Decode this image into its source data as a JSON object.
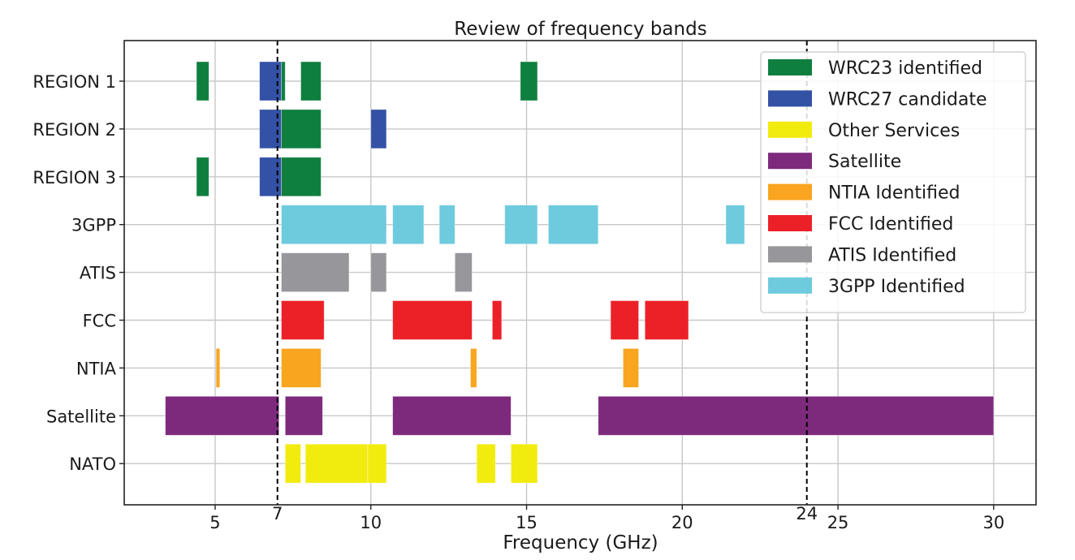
{
  "chart_data": {
    "type": "bar",
    "orientation": "horizontal-range",
    "title": "Review of frequency bands",
    "xlabel": "Frequency (GHz)",
    "ylabel": "",
    "xlim": [
      2.08,
      31.36
    ],
    "xticks": [
      5,
      10,
      15,
      20,
      25,
      30
    ],
    "grid": true,
    "legend_position": "top-right",
    "categories": [
      "REGION 1",
      "REGION 2",
      "REGION 3",
      "3GPP",
      "ATIS",
      "FCC",
      "NTIA",
      "Satellite",
      "NATO"
    ],
    "vlines": [
      {
        "x": 7,
        "label": "7",
        "style": "dashed",
        "color": "#000000"
      },
      {
        "x": 24,
        "label": "24",
        "style": "dashed",
        "color": "#000000"
      }
    ],
    "series": [
      {
        "name": "WRC23 identified",
        "color": "#0f7f3f"
      },
      {
        "name": "WRC27 candidate",
        "color": "#3352a6"
      },
      {
        "name": "Other Services",
        "color": "#f2eb0e"
      },
      {
        "name": "Satellite",
        "color": "#7d2a7d"
      },
      {
        "name": "NTIA Identified",
        "color": "#f9a51f"
      },
      {
        "name": "FCC Identified",
        "color": "#ec2128"
      },
      {
        "name": "ATIS Identified",
        "color": "#97979b"
      },
      {
        "name": "3GPP Identified",
        "color": "#6dcbdd"
      }
    ],
    "bands": [
      {
        "row": "REGION 1",
        "series": "WRC23 identified",
        "start": 4.4,
        "end": 4.8
      },
      {
        "row": "REGION 1",
        "series": "WRC27 candidate",
        "start": 6.425,
        "end": 7.125
      },
      {
        "row": "REGION 1",
        "series": "WRC23 identified",
        "start": 7.125,
        "end": 7.25
      },
      {
        "row": "REGION 1",
        "series": "WRC23 identified",
        "start": 7.75,
        "end": 8.4
      },
      {
        "row": "REGION 1",
        "series": "WRC23 identified",
        "start": 14.8,
        "end": 15.35
      },
      {
        "row": "REGION 2",
        "series": "WRC27 candidate",
        "start": 6.425,
        "end": 7.125
      },
      {
        "row": "REGION 2",
        "series": "WRC23 identified",
        "start": 7.125,
        "end": 8.4
      },
      {
        "row": "REGION 2",
        "series": "WRC27 candidate",
        "start": 10.0,
        "end": 10.5
      },
      {
        "row": "REGION 3",
        "series": "WRC23 identified",
        "start": 4.4,
        "end": 4.8
      },
      {
        "row": "REGION 3",
        "series": "WRC27 candidate",
        "start": 6.425,
        "end": 7.125
      },
      {
        "row": "REGION 3",
        "series": "WRC23 identified",
        "start": 7.125,
        "end": 8.4
      },
      {
        "row": "3GPP",
        "series": "3GPP Identified",
        "start": 7.125,
        "end": 10.5
      },
      {
        "row": "3GPP",
        "series": "3GPP Identified",
        "start": 10.7,
        "end": 11.7
      },
      {
        "row": "3GPP",
        "series": "3GPP Identified",
        "start": 12.2,
        "end": 12.7
      },
      {
        "row": "3GPP",
        "series": "3GPP Identified",
        "start": 14.3,
        "end": 15.35
      },
      {
        "row": "3GPP",
        "series": "3GPP Identified",
        "start": 15.7,
        "end": 17.3
      },
      {
        "row": "3GPP",
        "series": "3GPP Identified",
        "start": 21.4,
        "end": 22.0
      },
      {
        "row": "ATIS",
        "series": "ATIS Identified",
        "start": 7.125,
        "end": 9.3
      },
      {
        "row": "ATIS",
        "series": "ATIS Identified",
        "start": 10.0,
        "end": 10.5
      },
      {
        "row": "ATIS",
        "series": "ATIS Identified",
        "start": 12.7,
        "end": 13.25
      },
      {
        "row": "FCC",
        "series": "FCC Identified",
        "start": 7.125,
        "end": 8.5
      },
      {
        "row": "FCC",
        "series": "FCC Identified",
        "start": 10.7,
        "end": 13.25
      },
      {
        "row": "FCC",
        "series": "FCC Identified",
        "start": 13.9,
        "end": 14.2
      },
      {
        "row": "FCC",
        "series": "FCC Identified",
        "start": 17.7,
        "end": 18.6
      },
      {
        "row": "FCC",
        "series": "FCC Identified",
        "start": 18.8,
        "end": 20.2
      },
      {
        "row": "NTIA",
        "series": "NTIA Identified",
        "start": 5.03,
        "end": 5.15
      },
      {
        "row": "NTIA",
        "series": "NTIA Identified",
        "start": 7.125,
        "end": 8.4
      },
      {
        "row": "NTIA",
        "series": "NTIA Identified",
        "start": 13.2,
        "end": 13.4
      },
      {
        "row": "NTIA",
        "series": "NTIA Identified",
        "start": 18.1,
        "end": 18.6
      },
      {
        "row": "Satellite",
        "series": "Satellite",
        "start": 3.4,
        "end": 7.05
      },
      {
        "row": "Satellite",
        "series": "Satellite",
        "start": 7.25,
        "end": 8.45
      },
      {
        "row": "Satellite",
        "series": "Satellite",
        "start": 10.7,
        "end": 14.5
      },
      {
        "row": "Satellite",
        "series": "Satellite",
        "start": 17.3,
        "end": 30.0
      },
      {
        "row": "NATO",
        "series": "Other Services",
        "start": 7.25,
        "end": 7.75
      },
      {
        "row": "NATO",
        "series": "Other Services",
        "start": 7.9,
        "end": 9.9
      },
      {
        "row": "NATO",
        "series": "Other Services",
        "start": 9.9,
        "end": 10.5
      },
      {
        "row": "NATO",
        "series": "Other Services",
        "start": 13.4,
        "end": 14.0
      },
      {
        "row": "NATO",
        "series": "Other Services",
        "start": 14.5,
        "end": 15.35
      }
    ]
  }
}
